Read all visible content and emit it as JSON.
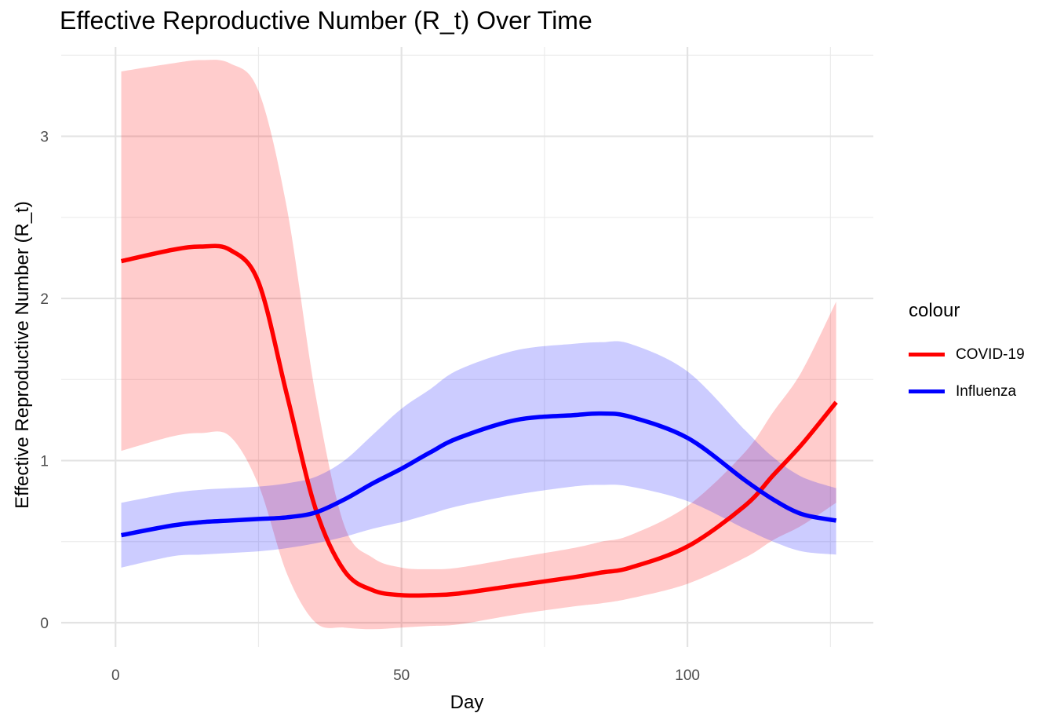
{
  "chart_data": {
    "type": "line",
    "title": "Effective Reproductive Number (R_t) Over Time",
    "xlabel": "Day",
    "ylabel": "Effective Reproductive Number (R_t)",
    "xlim": [
      -9.5,
      132.5
    ],
    "ylim": [
      -0.15,
      3.55
    ],
    "x_ticks": [
      0,
      50,
      100
    ],
    "y_ticks": [
      0,
      1,
      2,
      3
    ],
    "grid": true,
    "legend": {
      "title": "colour",
      "position": "right"
    },
    "x": [
      1,
      10,
      15,
      20,
      25,
      30,
      35,
      40,
      45,
      50,
      55,
      60,
      70,
      80,
      85,
      90,
      100,
      110,
      115,
      120,
      126
    ],
    "series": [
      {
        "name": "COVID-19",
        "color": "#ff0000",
        "ribbon_color": "#ff0000",
        "values": [
          2.23,
          2.3,
          2.32,
          2.3,
          2.1,
          1.4,
          0.7,
          0.32,
          0.2,
          0.17,
          0.17,
          0.18,
          0.23,
          0.28,
          0.31,
          0.34,
          0.47,
          0.72,
          0.91,
          1.1,
          1.36
        ],
        "lower": [
          1.06,
          1.15,
          1.17,
          1.15,
          0.85,
          0.3,
          0.0,
          -0.03,
          -0.04,
          -0.03,
          -0.02,
          -0.01,
          0.05,
          0.1,
          0.12,
          0.15,
          0.24,
          0.4,
          0.51,
          0.6,
          0.74
        ],
        "upper": [
          3.4,
          3.45,
          3.47,
          3.45,
          3.28,
          2.55,
          1.4,
          0.6,
          0.4,
          0.34,
          0.33,
          0.34,
          0.4,
          0.46,
          0.5,
          0.54,
          0.72,
          1.05,
          1.3,
          1.55,
          1.98
        ]
      },
      {
        "name": "Influenza",
        "color": "#0000ff",
        "ribbon_color": "#0000ff",
        "values": [
          0.54,
          0.6,
          0.62,
          0.63,
          0.64,
          0.65,
          0.68,
          0.76,
          0.86,
          0.95,
          1.05,
          1.14,
          1.25,
          1.28,
          1.29,
          1.27,
          1.14,
          0.88,
          0.76,
          0.67,
          0.63
        ],
        "lower": [
          0.34,
          0.41,
          0.42,
          0.43,
          0.44,
          0.46,
          0.49,
          0.53,
          0.58,
          0.62,
          0.67,
          0.72,
          0.79,
          0.84,
          0.85,
          0.84,
          0.75,
          0.58,
          0.5,
          0.44,
          0.42
        ],
        "upper": [
          0.74,
          0.8,
          0.82,
          0.83,
          0.84,
          0.86,
          0.9,
          1.0,
          1.16,
          1.32,
          1.44,
          1.56,
          1.68,
          1.72,
          1.73,
          1.72,
          1.55,
          1.19,
          1.02,
          0.9,
          0.83
        ]
      }
    ]
  }
}
